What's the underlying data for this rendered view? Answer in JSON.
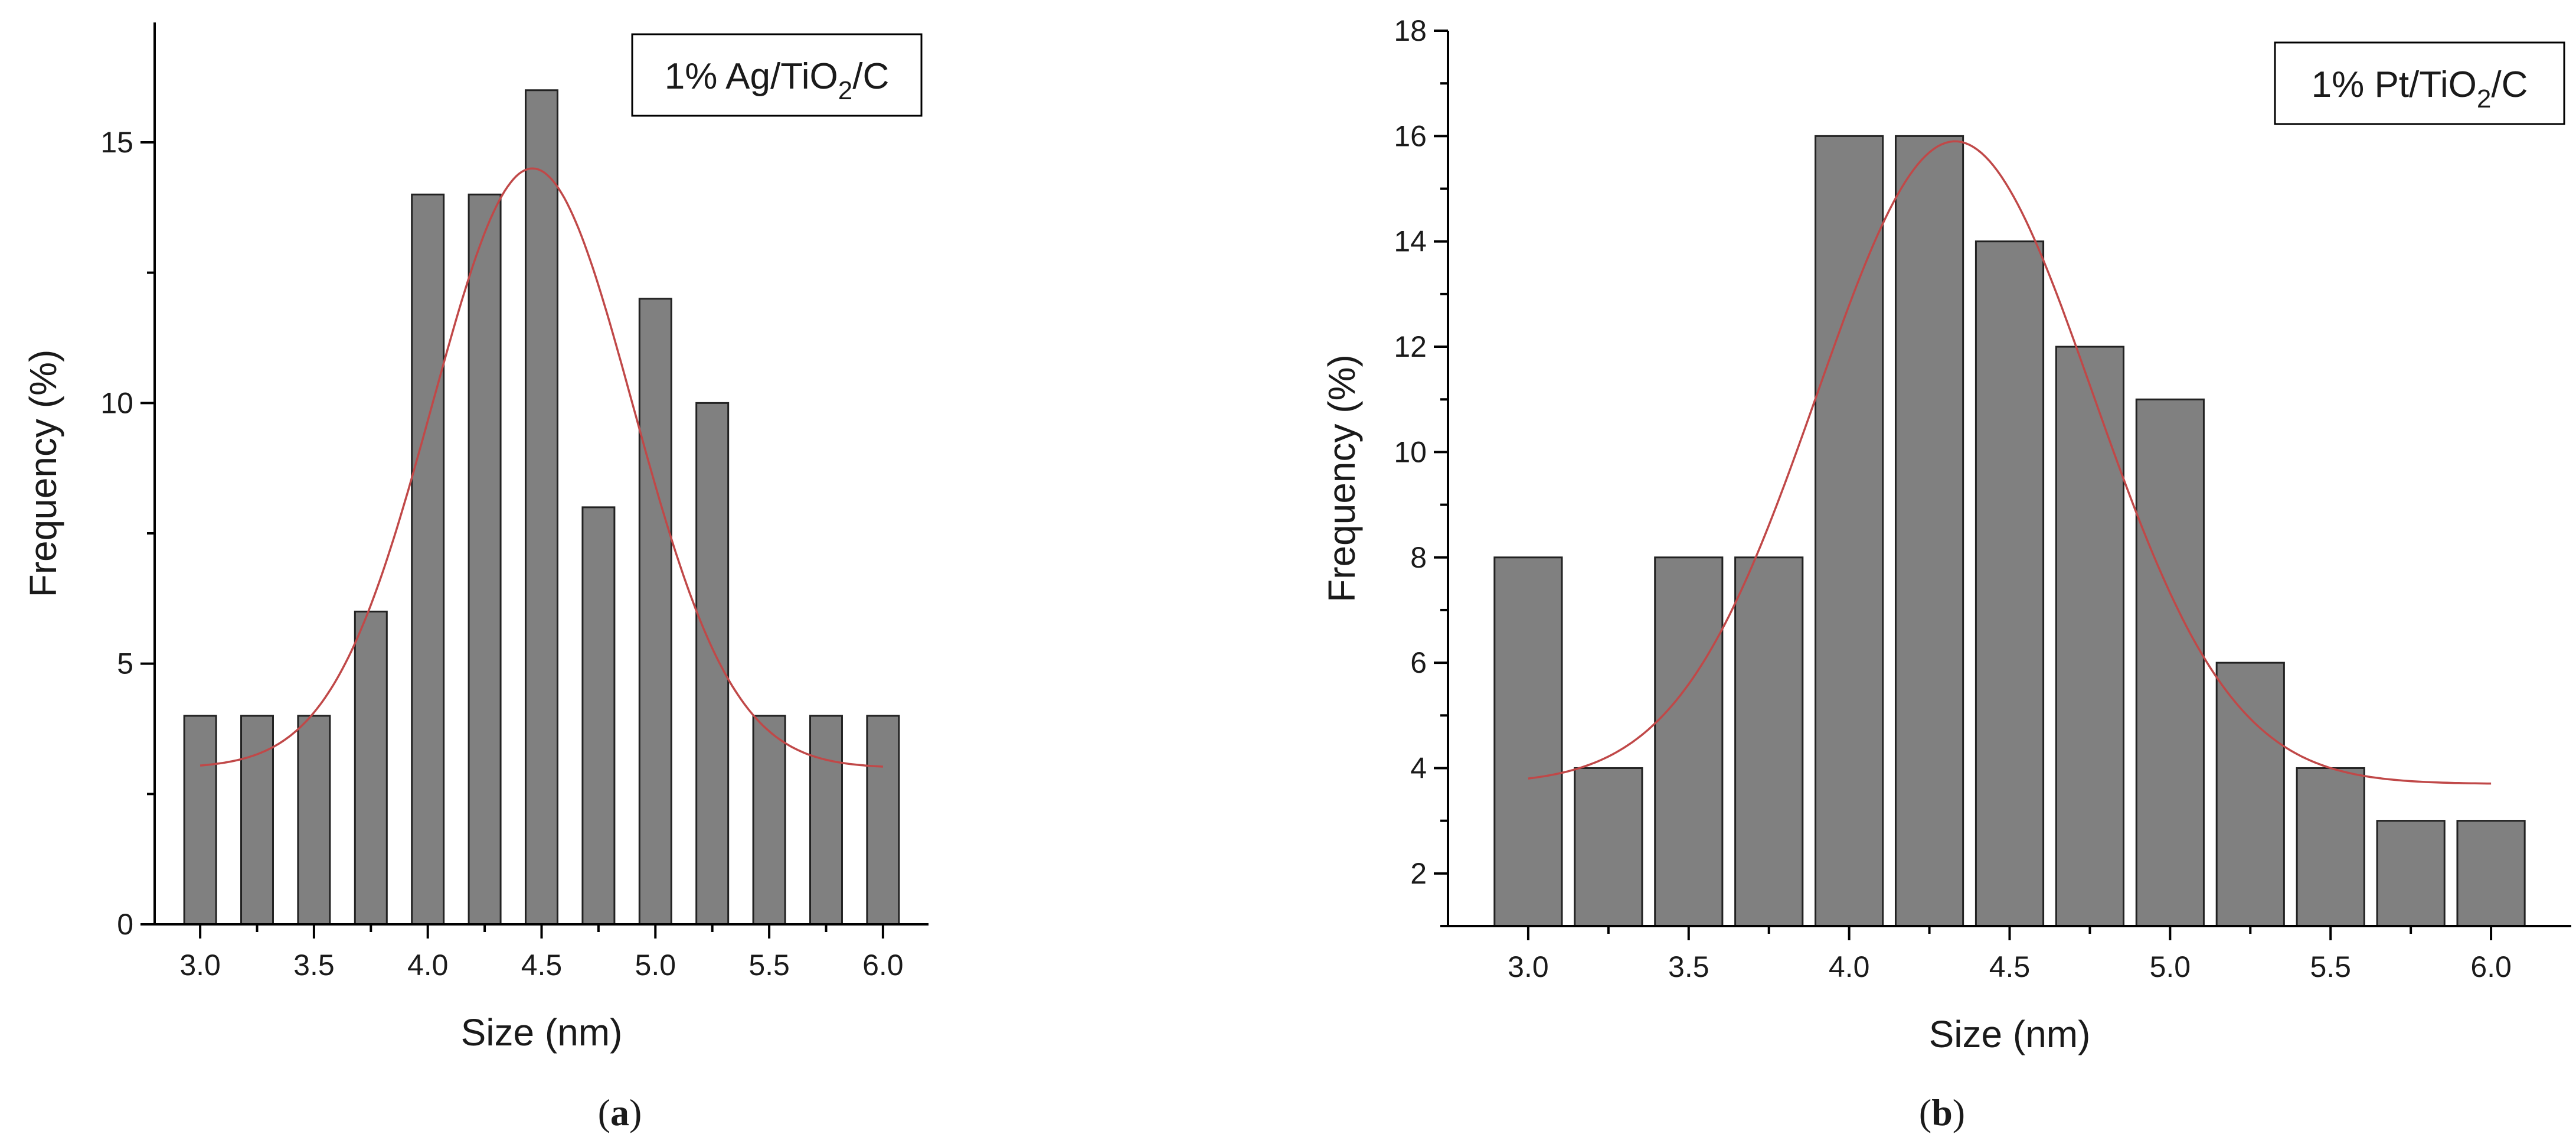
{
  "chart_data": [
    {
      "type": "bar",
      "panel_label": {
        "open": "(",
        "letter": "a",
        "close": ")"
      },
      "legend": {
        "prefix": "1% Ag/TiO",
        "subscript": "2",
        "suffix": "/C"
      },
      "xlabel": "Size (nm)",
      "ylabel": "Frequency (%)",
      "xlim": [
        2.8,
        6.2
      ],
      "ylim": [
        0,
        17.3
      ],
      "xticks": [
        3.0,
        3.5,
        4.0,
        4.5,
        5.0,
        5.5,
        6.0
      ],
      "xtick_labels": [
        "3.0",
        "3.5",
        "4.0",
        "4.5",
        "5.0",
        "5.5",
        "6.0"
      ],
      "yticks": [
        0,
        5,
        10,
        15
      ],
      "ytick_labels": [
        "0",
        "5",
        "10",
        "15"
      ],
      "bar_width": 0.14,
      "x": [
        3.0,
        3.25,
        3.5,
        3.75,
        4.0,
        4.25,
        4.5,
        4.75,
        5.0,
        5.25,
        5.5,
        5.75,
        6.0
      ],
      "values": [
        4,
        4,
        4,
        6,
        14,
        14,
        16,
        8,
        12,
        10,
        4,
        4,
        4
      ],
      "fit": {
        "type": "gaussian",
        "y0": 3.0,
        "A": 11.5,
        "mean": 4.46,
        "sigma": 0.44,
        "range": [
          3.0,
          6.0
        ]
      }
    },
    {
      "type": "bar",
      "panel_label": {
        "open": "(",
        "letter": "b",
        "close": ")"
      },
      "legend": {
        "prefix": "1% Pt/TiO",
        "subscript": "2",
        "suffix": "/C"
      },
      "xlabel": "Size (nm)",
      "ylabel": "Frequency (%)",
      "xlim": [
        2.75,
        6.25
      ],
      "ylim": [
        1,
        18
      ],
      "xticks": [
        3.0,
        3.5,
        4.0,
        4.5,
        5.0,
        5.5,
        6.0
      ],
      "xtick_labels": [
        "3.0",
        "3.5",
        "4.0",
        "4.5",
        "5.0",
        "5.5",
        "6.0"
      ],
      "yticks": [
        2,
        4,
        6,
        8,
        10,
        12,
        14,
        16,
        18
      ],
      "ytick_labels": [
        "2",
        "4",
        "6",
        "8",
        "10",
        "12",
        "14",
        "16",
        "18"
      ],
      "bar_width": 0.21,
      "x": [
        3.0,
        3.25,
        3.5,
        3.75,
        4.0,
        4.25,
        4.5,
        4.75,
        5.0,
        5.25,
        5.5,
        5.75,
        6.0
      ],
      "values": [
        8,
        4,
        8,
        8,
        16,
        16,
        14,
        12,
        11,
        6,
        4,
        3,
        3
      ],
      "fit": {
        "type": "gaussian",
        "y0": 3.7,
        "A": 12.2,
        "mean": 4.33,
        "sigma": 0.43,
        "range": [
          3.0,
          6.0
        ]
      }
    }
  ]
}
